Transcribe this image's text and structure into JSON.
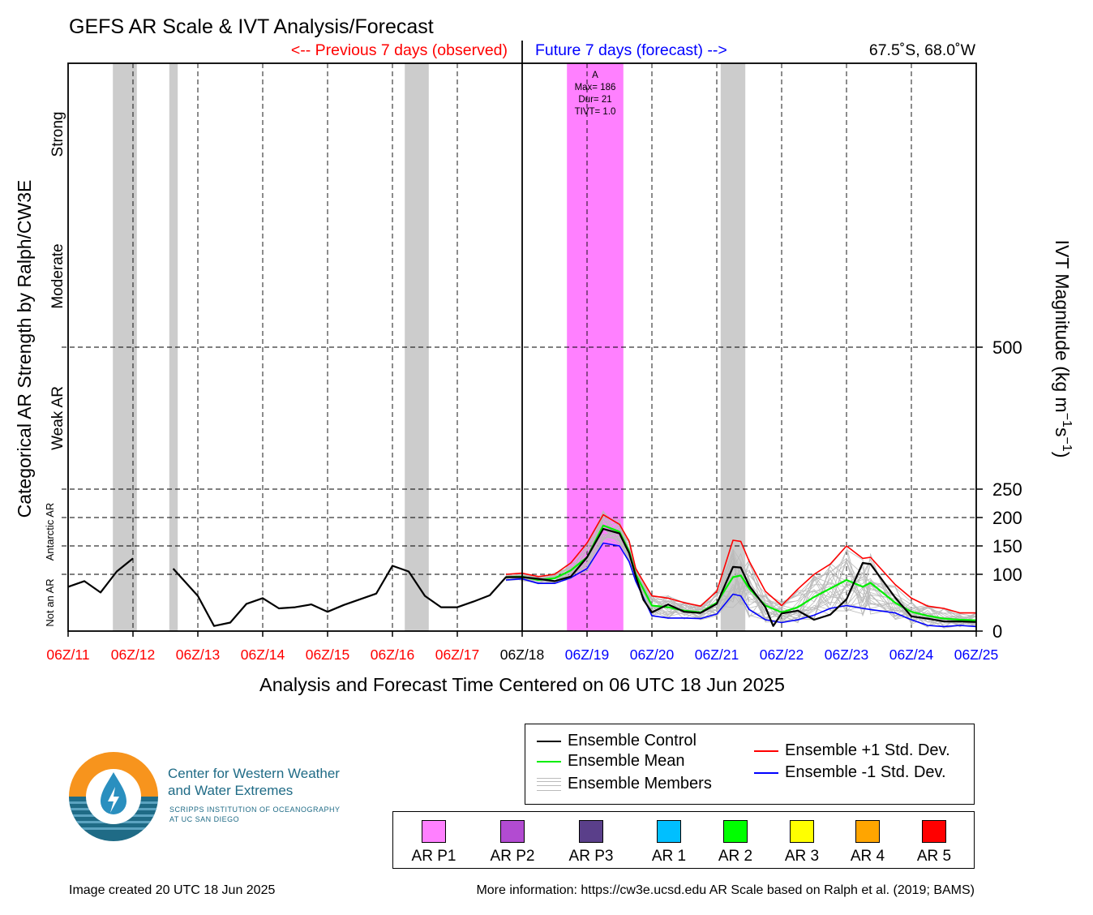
{
  "header": {
    "title": "GEFS AR Scale & IVT Analysis/Forecast",
    "previous_label": "<-- Previous 7 days (observed)",
    "future_label": "Future 7 days (forecast) -->",
    "location": "67.5˚S, 68.0˚W"
  },
  "colors": {
    "observed": "#ff0000",
    "forecast": "#0000ff",
    "ar_p1_band": "#ff80ff",
    "shade": "#cccccc",
    "control": "#000000",
    "mean": "#00ee00",
    "plus_std": "#ff0000",
    "minus_std": "#0000ff",
    "members": "#bbbbbb"
  },
  "chart_data": {
    "type": "line",
    "title": "GEFS AR Scale & IVT Analysis/Forecast",
    "xlabel": "Analysis and Forecast Time Centered on 06 UTC 18 Jun 2025",
    "ylabel_left": "Categorical AR Strength by Ralph/CW3E",
    "ylabel_right": "IVT Magnitude (kg m",
    "ylabel_right_units": [
      "−1",
      "s",
      "−1",
      ")"
    ],
    "x_unit": "days",
    "xlim": [
      11.25,
      25.25
    ],
    "ylim": [
      0,
      1000
    ],
    "x_ticks": [
      {
        "label": "06Z/11",
        "x": 11.25,
        "color": "observed"
      },
      {
        "label": "06Z/12",
        "x": 12.25,
        "color": "observed"
      },
      {
        "label": "06Z/13",
        "x": 13.25,
        "color": "observed"
      },
      {
        "label": "06Z/14",
        "x": 14.25,
        "color": "observed"
      },
      {
        "label": "06Z/15",
        "x": 15.25,
        "color": "observed"
      },
      {
        "label": "06Z/16",
        "x": 16.25,
        "color": "observed"
      },
      {
        "label": "06Z/17",
        "x": 17.25,
        "color": "observed"
      },
      {
        "label": "06Z/18",
        "x": 18.25,
        "color": "black"
      },
      {
        "label": "06Z/19",
        "x": 19.25,
        "color": "forecast"
      },
      {
        "label": "06Z/20",
        "x": 20.25,
        "color": "forecast"
      },
      {
        "label": "06Z/21",
        "x": 21.25,
        "color": "forecast"
      },
      {
        "label": "06Z/22",
        "x": 22.25,
        "color": "forecast"
      },
      {
        "label": "06Z/23",
        "x": 23.25,
        "color": "forecast"
      },
      {
        "label": "06Z/24",
        "x": 24.25,
        "color": "forecast"
      },
      {
        "label": "06Z/25",
        "x": 25.25,
        "color": "forecast"
      }
    ],
    "y_ticks_right": [
      0,
      100,
      150,
      200,
      250,
      500
    ],
    "y_gridlines": [
      100,
      150,
      200,
      250,
      500
    ],
    "category_labels": [
      {
        "label": "Not an AR",
        "y_from": 0,
        "y_to": 100
      },
      {
        "label": "Antarctic AR",
        "y_from": 100,
        "y_to": 250
      },
      {
        "label": "Weak AR",
        "y_from": 250,
        "y_to": 500
      },
      {
        "label": "Moderate",
        "y_from": 500,
        "y_to": 750
      },
      {
        "label": "Strong",
        "y_from": 750,
        "y_to": 1000
      }
    ],
    "shaded_periods": [
      [
        11.94,
        12.31
      ],
      [
        12.81,
        12.94
      ],
      [
        16.44,
        16.81
      ],
      [
        21.31,
        21.69
      ]
    ],
    "ar_event": {
      "x_range": [
        18.94,
        19.81
      ],
      "color": "ar_p1_band",
      "lines": [
        "A",
        "Max= 186",
        "Dur= 21",
        "TIVT= 1.0"
      ]
    },
    "series": [
      {
        "name": "Ensemble Control",
        "color": "control",
        "width": 2.2,
        "segments": [
          [
            [
              11.25,
              78
            ],
            [
              11.5,
              88
            ],
            [
              11.75,
              68
            ],
            [
              12.0,
              105
            ],
            [
              12.25,
              128
            ]
          ],
          [
            [
              12.87,
              110
            ],
            [
              13.25,
              62
            ],
            [
              13.5,
              9
            ],
            [
              13.75,
              15
            ],
            [
              14.0,
              48
            ],
            [
              14.25,
              58
            ],
            [
              14.5,
              40
            ],
            [
              14.75,
              42
            ],
            [
              15.0,
              47
            ],
            [
              15.25,
              34
            ],
            [
              15.5,
              46
            ],
            [
              15.75,
              56
            ],
            [
              16.0,
              66
            ],
            [
              16.25,
              115
            ],
            [
              16.5,
              105
            ],
            [
              16.75,
              62
            ],
            [
              17.0,
              42
            ],
            [
              17.25,
              42
            ],
            [
              17.5,
              52
            ],
            [
              17.75,
              63
            ],
            [
              18.0,
              95
            ],
            [
              18.25,
              95
            ],
            [
              18.5,
              92
            ],
            [
              18.75,
              88
            ],
            [
              19.0,
              96
            ],
            [
              19.25,
              130
            ],
            [
              19.5,
              180
            ],
            [
              19.75,
              172
            ],
            [
              19.9,
              137
            ],
            [
              20.0,
              97
            ],
            [
              20.12,
              55
            ],
            [
              20.25,
              33
            ],
            [
              20.5,
              47
            ],
            [
              20.75,
              34
            ],
            [
              21.0,
              32
            ],
            [
              21.25,
              48
            ],
            [
              21.5,
              113
            ],
            [
              21.62,
              112
            ],
            [
              21.75,
              80
            ],
            [
              22.0,
              42
            ],
            [
              22.12,
              9
            ],
            [
              22.25,
              31
            ],
            [
              22.5,
              36
            ],
            [
              22.75,
              20
            ],
            [
              23.0,
              29
            ],
            [
              23.25,
              56
            ],
            [
              23.5,
              120
            ],
            [
              23.62,
              118
            ],
            [
              24.0,
              59
            ],
            [
              24.25,
              26
            ],
            [
              24.5,
              22
            ],
            [
              24.75,
              17
            ],
            [
              25.0,
              17
            ],
            [
              25.25,
              16
            ]
          ]
        ]
      },
      {
        "name": "Ensemble Mean",
        "color": "mean",
        "width": 2.2,
        "segments": [
          [
            [
              18.0,
              95
            ],
            [
              18.25,
              96
            ],
            [
              18.5,
              90
            ],
            [
              18.75,
              93
            ],
            [
              19.0,
              107
            ],
            [
              19.25,
              130
            ],
            [
              19.5,
              186
            ],
            [
              19.75,
              175
            ],
            [
              19.9,
              140
            ],
            [
              20.0,
              100
            ],
            [
              20.25,
              45
            ],
            [
              20.5,
              42
            ],
            [
              20.75,
              36
            ],
            [
              21.0,
              33
            ],
            [
              21.25,
              50
            ],
            [
              21.5,
              95
            ],
            [
              21.62,
              98
            ],
            [
              21.75,
              75
            ],
            [
              22.0,
              45
            ],
            [
              22.25,
              33
            ],
            [
              22.5,
              42
            ],
            [
              22.75,
              60
            ],
            [
              23.0,
              75
            ],
            [
              23.25,
              90
            ],
            [
              23.5,
              78
            ],
            [
              23.62,
              85
            ],
            [
              24.0,
              50
            ],
            [
              24.25,
              34
            ],
            [
              24.5,
              27
            ],
            [
              24.75,
              22
            ],
            [
              25.0,
              20
            ],
            [
              25.25,
              19
            ]
          ]
        ]
      },
      {
        "name": "Ensemble +1 Std. Dev.",
        "color": "plus_std",
        "width": 1.6,
        "segments": [
          [
            [
              18.0,
              100
            ],
            [
              18.25,
              102
            ],
            [
              18.5,
              96
            ],
            [
              18.75,
              100
            ],
            [
              19.0,
              120
            ],
            [
              19.25,
              155
            ],
            [
              19.5,
              205
            ],
            [
              19.75,
              188
            ],
            [
              19.9,
              158
            ],
            [
              20.0,
              110
            ],
            [
              20.25,
              62
            ],
            [
              20.5,
              58
            ],
            [
              20.75,
              50
            ],
            [
              21.0,
              44
            ],
            [
              21.25,
              70
            ],
            [
              21.5,
              160
            ],
            [
              21.62,
              158
            ],
            [
              21.75,
              123
            ],
            [
              22.0,
              70
            ],
            [
              22.25,
              45
            ],
            [
              22.5,
              74
            ],
            [
              22.75,
              100
            ],
            [
              23.0,
              118
            ],
            [
              23.25,
              150
            ],
            [
              23.5,
              128
            ],
            [
              23.62,
              130
            ],
            [
              24.0,
              82
            ],
            [
              24.25,
              58
            ],
            [
              24.5,
              44
            ],
            [
              24.75,
              40
            ],
            [
              25.0,
              32
            ],
            [
              25.25,
              32
            ]
          ]
        ]
      },
      {
        "name": "Ensemble -1 Std. Dev.",
        "color": "minus_std",
        "width": 1.6,
        "segments": [
          [
            [
              18.0,
              90
            ],
            [
              18.25,
              92
            ],
            [
              18.5,
              84
            ],
            [
              18.75,
              84
            ],
            [
              19.0,
              94
            ],
            [
              19.25,
              110
            ],
            [
              19.5,
              155
            ],
            [
              19.75,
              150
            ],
            [
              19.9,
              122
            ],
            [
              20.0,
              88
            ],
            [
              20.25,
              27
            ],
            [
              20.5,
              23
            ],
            [
              20.75,
              23
            ],
            [
              21.0,
              22
            ],
            [
              21.25,
              30
            ],
            [
              21.5,
              65
            ],
            [
              21.62,
              62
            ],
            [
              21.75,
              38
            ],
            [
              22.0,
              20
            ],
            [
              22.25,
              15
            ],
            [
              22.5,
              20
            ],
            [
              22.75,
              28
            ],
            [
              23.0,
              40
            ],
            [
              23.25,
              45
            ],
            [
              23.5,
              40
            ],
            [
              23.62,
              38
            ],
            [
              24.0,
              32
            ],
            [
              24.25,
              20
            ],
            [
              24.5,
              10
            ],
            [
              24.75,
              8
            ],
            [
              25.0,
              10
            ],
            [
              25.25,
              8
            ]
          ]
        ]
      }
    ],
    "legend": [
      {
        "label": "Ensemble Control",
        "color": "control"
      },
      {
        "label": "Ensemble Mean",
        "color": "mean"
      },
      {
        "label": "Ensemble Members",
        "color": "members"
      },
      {
        "label": "Ensemble +1 Std. Dev.",
        "color": "plus_std"
      },
      {
        "label": "Ensemble -1 Std. Dev.",
        "color": "minus_std"
      }
    ],
    "grid": "dashed",
    "legend_position": "bottom-right"
  },
  "ar_scale": [
    {
      "label": "AR P1",
      "color": "#ff80ff"
    },
    {
      "label": "AR P2",
      "color": "#b24bd1"
    },
    {
      "label": "AR P3",
      "color": "#5a3f8a"
    },
    {
      "label": "AR 1",
      "color": "#00bfff"
    },
    {
      "label": "AR 2",
      "color": "#00ff00"
    },
    {
      "label": "AR 3",
      "color": "#ffff00"
    },
    {
      "label": "AR 4",
      "color": "#ffa500"
    },
    {
      "label": "AR 5",
      "color": "#ff0000"
    }
  ],
  "logo": {
    "line1": "Center for Western Weather",
    "line2": "and Water Extremes",
    "line3": "SCRIPPS INSTITUTION OF OCEANOGRAPHY",
    "line4": "AT UC SAN DIEGO"
  },
  "footer": {
    "created": "Image created 20 UTC 18 Jun 2025",
    "info": "More information: https://cw3e.ucsd.edu AR Scale based on Ralph et al. (2019; BAMS)"
  }
}
